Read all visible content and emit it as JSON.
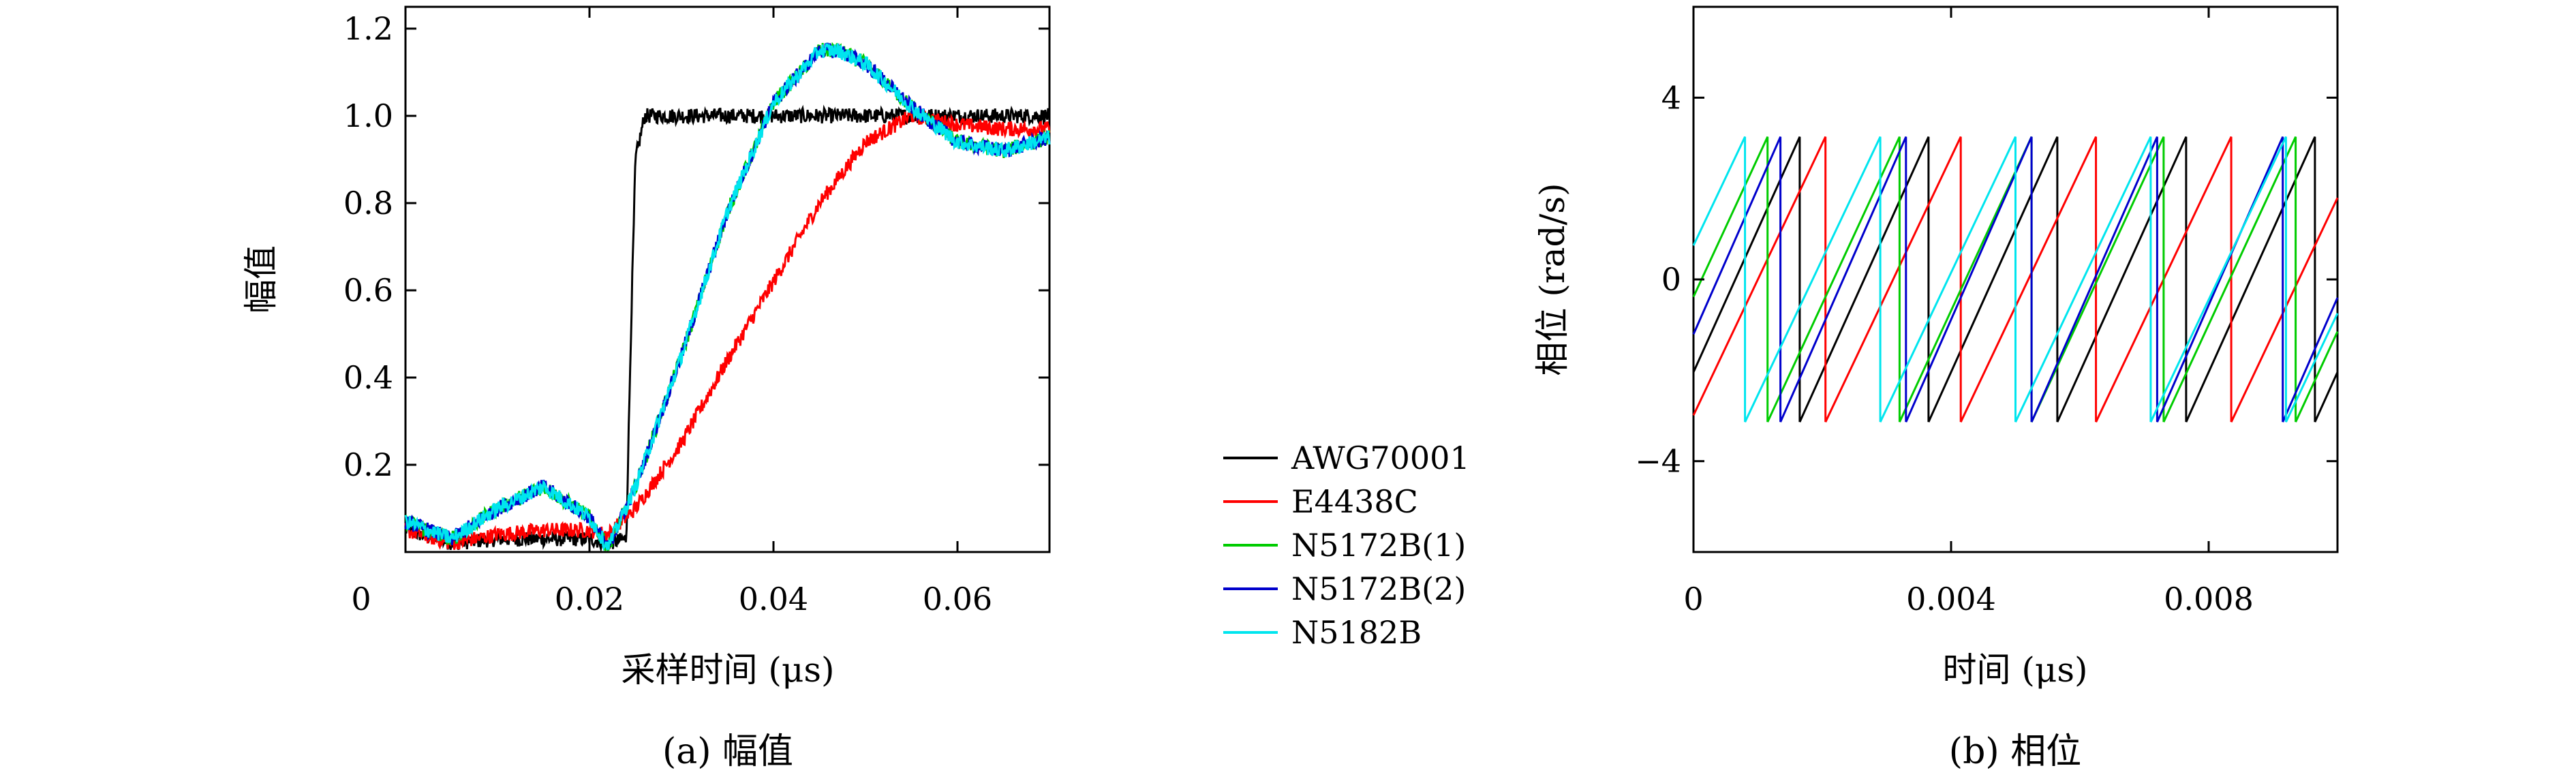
{
  "legend": [
    "AWG70001",
    "E4438C",
    "N5172B(1)",
    "N5172B(2)",
    "N5182B"
  ],
  "colors": {
    "AWG70001": "#000000",
    "E4438C": "#ff0000",
    "N5172B(1)": "#00cc00",
    "N5172B(2)": "#0000cc",
    "N5182B": "#00e5ee"
  },
  "chart_data": [
    {
      "type": "line",
      "caption": "(a) 幅值",
      "xlabel": "采样时间 (μs)",
      "ylabel": "幅值",
      "xlim": [
        0,
        0.07
      ],
      "ylim": [
        0,
        1.25
      ],
      "xticks": [
        "0",
        "0.02",
        "0.04",
        "0.06"
      ],
      "yticks": [
        "0.2",
        "0.4",
        "0.6",
        "0.8",
        "1.0",
        "1.2"
      ],
      "grid": false,
      "series": [
        {
          "name": "AWG70001",
          "x": [
            0,
            0.005,
            0.01,
            0.015,
            0.02,
            0.022,
            0.024,
            0.0245,
            0.025,
            0.026,
            0.03,
            0.04,
            0.05,
            0.06,
            0.07
          ],
          "y": [
            0.05,
            0.02,
            0.03,
            0.03,
            0.03,
            0.02,
            0.03,
            0.5,
            0.9,
            1.0,
            1.0,
            1.0,
            1.0,
            1.0,
            1.0
          ]
        },
        {
          "name": "E4438C",
          "x": [
            0,
            0.005,
            0.01,
            0.015,
            0.02,
            0.022,
            0.025,
            0.03,
            0.035,
            0.04,
            0.045,
            0.05,
            0.055,
            0.06,
            0.065,
            0.07
          ],
          "y": [
            0.05,
            0.02,
            0.04,
            0.05,
            0.05,
            0.04,
            0.1,
            0.25,
            0.44,
            0.62,
            0.8,
            0.94,
            1.0,
            0.98,
            0.97,
            0.97
          ]
        },
        {
          "name": "N5172B(1)",
          "x": [
            0,
            0.005,
            0.01,
            0.015,
            0.02,
            0.022,
            0.025,
            0.03,
            0.035,
            0.04,
            0.045,
            0.047,
            0.05,
            0.055,
            0.06,
            0.065,
            0.07
          ],
          "y": [
            0.07,
            0.03,
            0.1,
            0.15,
            0.08,
            0.01,
            0.15,
            0.45,
            0.78,
            1.03,
            1.15,
            1.15,
            1.12,
            1.02,
            0.94,
            0.92,
            0.95
          ]
        },
        {
          "name": "N5172B(2)",
          "x": [
            0,
            0.005,
            0.01,
            0.015,
            0.02,
            0.022,
            0.025,
            0.03,
            0.035,
            0.04,
            0.045,
            0.047,
            0.05,
            0.055,
            0.06,
            0.065,
            0.07
          ],
          "y": [
            0.07,
            0.03,
            0.1,
            0.15,
            0.08,
            0.01,
            0.15,
            0.45,
            0.78,
            1.03,
            1.15,
            1.15,
            1.12,
            1.02,
            0.94,
            0.92,
            0.95
          ]
        },
        {
          "name": "N5182B",
          "x": [
            0,
            0.005,
            0.01,
            0.015,
            0.02,
            0.022,
            0.025,
            0.03,
            0.035,
            0.04,
            0.045,
            0.047,
            0.05,
            0.055,
            0.06,
            0.065,
            0.07
          ],
          "y": [
            0.07,
            0.03,
            0.1,
            0.15,
            0.08,
            0.01,
            0.15,
            0.45,
            0.78,
            1.03,
            1.15,
            1.15,
            1.12,
            1.02,
            0.94,
            0.92,
            0.95
          ]
        }
      ]
    },
    {
      "type": "line",
      "caption": "(b) 相位",
      "xlabel": "时间 (μs)",
      "ylabel": "相位 (rad/s)",
      "xlim": [
        0,
        0.01
      ],
      "ylim": [
        -6,
        6
      ],
      "xticks": [
        "0",
        "0.004",
        "0.008"
      ],
      "yticks": [
        "-4",
        "0",
        "4"
      ],
      "grid": false,
      "wrap": [
        -3.14,
        3.14
      ],
      "series": [
        {
          "name": "AWG70001",
          "period": 0.002,
          "phase_offset": 0.00035
        },
        {
          "name": "E4438C",
          "period": 0.0021,
          "phase_offset": 5e-05
        },
        {
          "name": "N5172B(1)",
          "period": 0.00205,
          "phase_offset": 0.0009
        },
        {
          "name": "N5172B(2)",
          "period": 0.00195,
          "phase_offset": 0.0006
        },
        {
          "name": "N5182B",
          "period": 0.0021,
          "phase_offset": 0.0013
        }
      ]
    }
  ]
}
